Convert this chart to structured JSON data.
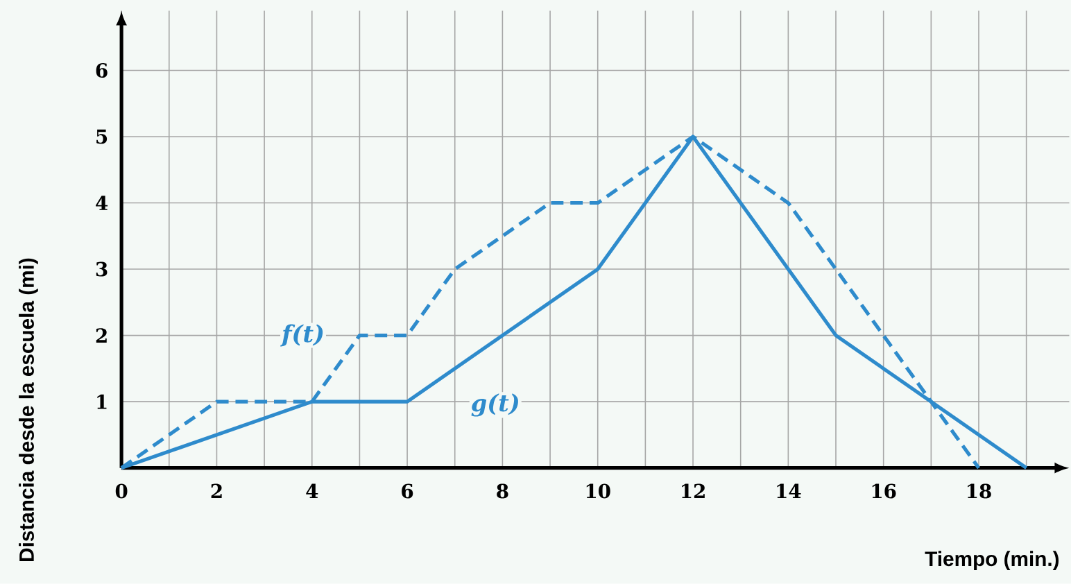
{
  "chart_data": {
    "type": "line",
    "xlabel": "Tiempo (min.)",
    "ylabel": "Distancia desde la escuela (mi)",
    "xlim": [
      0,
      19.9
    ],
    "ylim": [
      0,
      6.9
    ],
    "xticks": [
      0,
      {
        "value": 1,
        "label": null
      },
      2,
      {
        "value": 3,
        "label": null
      },
      4,
      {
        "value": 5,
        "label": null
      },
      6,
      {
        "value": 7,
        "label": null
      },
      8,
      {
        "value": 9,
        "label": null
      },
      10,
      {
        "value": 11,
        "label": null
      },
      12,
      {
        "value": 13,
        "label": null
      },
      14,
      {
        "value": 15,
        "label": null
      },
      16,
      {
        "value": 17,
        "label": null
      },
      18,
      {
        "value": 19,
        "label": null
      }
    ],
    "yticks": [
      1,
      2,
      3,
      4,
      5,
      6
    ],
    "grid": true,
    "legend": false,
    "marker": "none",
    "series": [
      {
        "name": "f(t)",
        "color": "#2e8bcc",
        "line_style": "dashed",
        "x": [
          0,
          2,
          4,
          5,
          6,
          7,
          9,
          10,
          12,
          14,
          18
        ],
        "values": [
          0,
          1,
          1,
          2,
          2,
          3,
          4,
          4,
          5,
          4,
          0
        ]
      },
      {
        "name": "g(t)",
        "color": "#2e8bcc",
        "line_style": "solid",
        "x": [
          0,
          4,
          6,
          10,
          12,
          15,
          19
        ],
        "values": [
          0,
          1,
          1,
          3,
          5,
          2,
          0
        ]
      }
    ]
  }
}
